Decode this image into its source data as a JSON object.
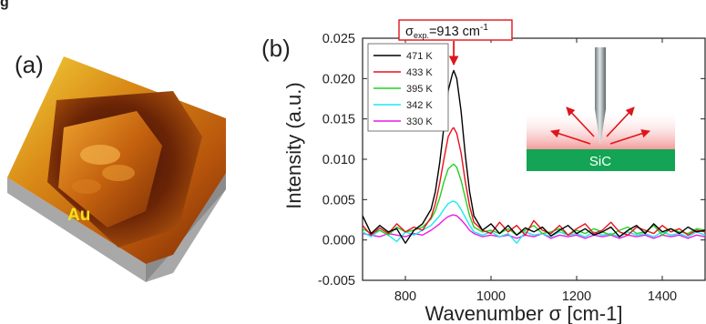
{
  "figure": {
    "top_clip_text": "g",
    "panel_a_label": "(a)",
    "panel_b_label": "(b)"
  },
  "afm_image": {
    "label": "Au",
    "label_color": "#f2e21a"
  },
  "inset": {
    "substrate_label": "SiC",
    "substrate_color": "#13a555"
  },
  "colors": {
    "axis": "#222222",
    "annotation_border": "#e0141a",
    "annotation_arrow": "#e0141a"
  },
  "chart_data": {
    "type": "line",
    "xlabel": "Wavenumber σ [cm-1]",
    "ylabel": "Intensity (a.u.)",
    "xlim": [
      700,
      1500
    ],
    "ylim": [
      -0.005,
      0.025
    ],
    "xticks": [
      800,
      1000,
      1200,
      1400
    ],
    "xtick_labels": [
      "800",
      "1000",
      "1200",
      "1400"
    ],
    "yticks": [
      -0.005,
      0.0,
      0.005,
      0.01,
      0.015,
      0.02,
      0.025
    ],
    "ytick_labels": [
      "-0.005",
      "0.000",
      "0.005",
      "0.010",
      "0.015",
      "0.020",
      "0.025"
    ],
    "grid": false,
    "legend_position": "top-left",
    "annotation": {
      "text_base": "σ",
      "text_sub": "exp.",
      "text_rest": "=913 cm",
      "text_sup": "-1",
      "x": 913,
      "y_arrow_tip": 0.0215
    },
    "series": [
      {
        "name": "471 K",
        "color": "#000000",
        "peak": 0.021
      },
      {
        "name": "433 K",
        "color": "#e8111a",
        "peak": 0.0139
      },
      {
        "name": "395 K",
        "color": "#22d122",
        "peak": 0.0094
      },
      {
        "name": "342 K",
        "color": "#1ee8f0",
        "peak": 0.0048
      },
      {
        "name": "330 K",
        "color": "#e81ae8",
        "peak": 0.0031
      }
    ],
    "x": [
      700,
      720,
      740,
      760,
      780,
      800,
      820,
      840,
      860,
      870,
      880,
      890,
      900,
      910,
      913,
      920,
      930,
      940,
      950,
      960,
      980,
      1000,
      1020,
      1040,
      1060,
      1080,
      1100,
      1120,
      1140,
      1160,
      1180,
      1200,
      1220,
      1240,
      1260,
      1280,
      1300,
      1320,
      1340,
      1360,
      1380,
      1400,
      1420,
      1440,
      1460,
      1480,
      1500
    ],
    "y": {
      "471 K": [
        0.003,
        0.0008,
        0.0018,
        0.001,
        0.0014,
        -0.0004,
        0.0012,
        0.002,
        0.0038,
        0.006,
        0.0095,
        0.014,
        0.0185,
        0.0206,
        0.021,
        0.02,
        0.016,
        0.0105,
        0.006,
        0.003,
        0.0012,
        0.002,
        0.0008,
        0.0018,
        0.0006,
        0.0015,
        0.001,
        0.0016,
        0.0005,
        0.0012,
        0.0018,
        0.0008,
        0.0014,
        0.0006,
        0.001,
        0.0016,
        0.0004,
        0.0012,
        0.0018,
        0.0008,
        0.002,
        0.001,
        0.0014,
        0.0008,
        0.0016,
        0.001,
        0.0012
      ],
      "433 K": [
        0.0018,
        0.0006,
        0.0015,
        0.0008,
        0.002,
        0.001,
        0.0016,
        0.0012,
        0.0028,
        0.0045,
        0.007,
        0.01,
        0.0128,
        0.0138,
        0.0139,
        0.0132,
        0.0108,
        0.0072,
        0.0042,
        0.0022,
        0.0012,
        0.0008,
        0.0022,
        0.001,
        0.0018,
        0.0006,
        0.0024,
        0.0012,
        0.0008,
        0.0018,
        0.0006,
        0.0014,
        0.002,
        0.0008,
        0.0012,
        0.0022,
        0.001,
        0.0006,
        0.0016,
        0.0012,
        0.0008,
        0.0018,
        0.001,
        0.0014,
        0.0006,
        0.0012,
        0.001
      ],
      "395 K": [
        0.0014,
        0.0008,
        0.0012,
        0.0006,
        0.0016,
        0.001,
        0.0012,
        0.0016,
        0.0026,
        0.0036,
        0.0052,
        0.0072,
        0.0088,
        0.0093,
        0.0094,
        0.009,
        0.0074,
        0.0052,
        0.003,
        0.0016,
        0.001,
        0.0012,
        0.0008,
        0.0014,
        0.0006,
        0.0012,
        0.0018,
        0.0008,
        0.001,
        0.0014,
        0.0006,
        0.0012,
        0.0008,
        0.0014,
        0.001,
        0.0006,
        0.0012,
        0.0016,
        0.0008,
        0.001,
        0.0018,
        0.0006,
        0.0014,
        0.001,
        0.0008,
        0.0014,
        0.0012
      ],
      "342 K": [
        0.001,
        0.0004,
        0.0012,
        0.0006,
        -0.0002,
        0.001,
        0.0006,
        0.0012,
        0.0018,
        0.0024,
        0.003,
        0.0038,
        0.0045,
        0.0048,
        0.0048,
        0.0046,
        0.0038,
        0.0028,
        0.0018,
        0.001,
        0.0006,
        0.001,
        0.0004,
        0.0008,
        -0.0004,
        0.001,
        0.0006,
        0.0008,
        0.0004,
        0.001,
        0.0006,
        0.0008,
        0.0004,
        0.001,
        0.0006,
        0.0008,
        0.0004,
        0.001,
        0.0006,
        0.0008,
        0.0004,
        0.001,
        0.0006,
        0.0008,
        0.0004,
        0.001,
        0.0006
      ],
      "330 K": [
        0.0008,
        0.0006,
        0.0004,
        0.0008,
        0.0006,
        0.0004,
        0.0008,
        0.0006,
        0.0012,
        0.0016,
        0.002,
        0.0025,
        0.0029,
        0.0031,
        0.0031,
        0.003,
        0.0025,
        0.0019,
        0.0012,
        0.0008,
        0.0004,
        0.0006,
        0.0004,
        0.0006,
        0.0002,
        0.0006,
        0.0004,
        0.0008,
        0.0002,
        0.0006,
        0.0004,
        0.0006,
        0.0002,
        0.0006,
        0.0004,
        0.0006,
        0.0002,
        0.0006,
        0.0004,
        0.0006,
        0.0002,
        0.0006,
        0.0004,
        0.0006,
        0.0002,
        0.0006,
        0.0004
      ]
    }
  }
}
